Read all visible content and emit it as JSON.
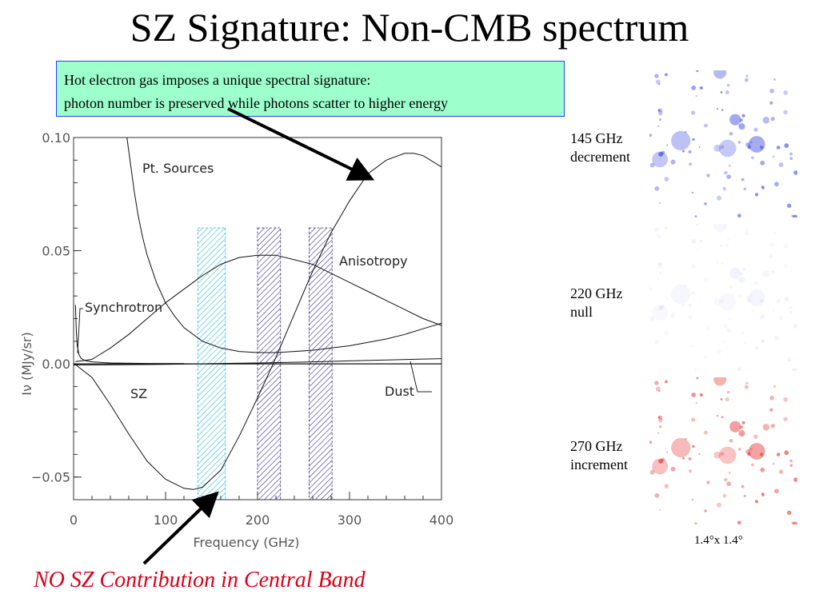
{
  "slide": {
    "title": "SZ Signature: Non-CMB spectrum",
    "callout_line1": "Hot electron gas imposes a unique spectral signature:",
    "callout_line2": "photon number is preserved while photons scatter to higher energy",
    "bottom_note": "NO SZ Contribution in Central Band",
    "scale_note": "1.4°x 1.4°",
    "bottom_note_color": "#d8001a",
    "callout_bg": "#9cffcc"
  },
  "maps": [
    {
      "label_line1": "145 GHz",
      "label_line2": "decrement",
      "color": "#1a28d8",
      "level": "strong"
    },
    {
      "label_line1": "220 GHz",
      "label_line2": "null",
      "color": "#4a58e0",
      "level": "faint"
    },
    {
      "label_line1": "270 GHz",
      "label_line2": "increment",
      "color": "#e01010",
      "level": "strong"
    }
  ],
  "chart_data": {
    "type": "line",
    "xlabel": "Frequency (GHz)",
    "ylabel": "Iν  (MJy/sr)",
    "xlim": [
      0,
      400
    ],
    "ylim": [
      -0.06,
      0.1
    ],
    "xticks": [
      0,
      100,
      200,
      300,
      400
    ],
    "yticks": [
      -0.05,
      0.0,
      0.05,
      0.1
    ],
    "xtick_labels": [
      "0",
      "100",
      "200",
      "300",
      "400"
    ],
    "ytick_labels": [
      "−0.05",
      "0.00",
      "0.05",
      "0.10"
    ],
    "bands": [
      {
        "x0": 135,
        "x1": 165,
        "color": "#2ab8d8"
      },
      {
        "x0": 200,
        "x1": 225,
        "color": "#3a2a8a"
      },
      {
        "x0": 256,
        "x1": 281,
        "color": "#3a2a8a"
      }
    ],
    "series": [
      {
        "name": "SZ",
        "x": [
          1,
          20,
          40,
          60,
          80,
          100,
          120,
          130,
          140,
          160,
          180,
          200,
          217,
          240,
          260,
          280,
          300,
          320,
          340,
          360,
          370,
          380,
          400
        ],
        "y": [
          0,
          -0.006,
          -0.018,
          -0.031,
          -0.043,
          -0.051,
          -0.055,
          -0.0555,
          -0.0545,
          -0.047,
          -0.032,
          -0.015,
          0,
          0.022,
          0.041,
          0.058,
          0.072,
          0.084,
          0.09,
          0.093,
          0.093,
          0.092,
          0.087
        ]
      },
      {
        "name": "Anisotropy",
        "x": [
          2,
          20,
          40,
          60,
          80,
          100,
          120,
          140,
          160,
          180,
          200,
          220,
          240,
          260,
          280,
          300,
          320,
          340,
          360,
          380,
          400
        ],
        "y": [
          0.001,
          0.002,
          0.007,
          0.013,
          0.02,
          0.027,
          0.033,
          0.039,
          0.044,
          0.047,
          0.048,
          0.048,
          0.046,
          0.044,
          0.04,
          0.036,
          0.032,
          0.028,
          0.024,
          0.02,
          0.017
        ]
      },
      {
        "name": "Pt. Sources",
        "x": [
          58,
          62,
          66,
          70,
          75,
          80,
          90,
          100,
          110,
          120,
          140,
          160,
          180,
          200,
          220,
          240,
          260,
          280,
          300,
          320,
          340,
          360,
          380,
          400
        ],
        "y": [
          0.1,
          0.088,
          0.076,
          0.066,
          0.056,
          0.048,
          0.036,
          0.027,
          0.021,
          0.016,
          0.01,
          0.007,
          0.0055,
          0.005,
          0.005,
          0.0055,
          0.006,
          0.007,
          0.008,
          0.0095,
          0.011,
          0.013,
          0.0155,
          0.018
        ]
      },
      {
        "name": "Synchrotron",
        "x": [
          2,
          3,
          4,
          6,
          8,
          12,
          20,
          40,
          80,
          120
        ],
        "y": [
          0.026,
          0.014,
          0.008,
          0.004,
          0.0025,
          0.0015,
          0.0009,
          0.0004,
          0.0002,
          0.0001
        ]
      },
      {
        "name": "Dust",
        "x": [
          0,
          50,
          100,
          150,
          200,
          250,
          300,
          350,
          400
        ],
        "y": [
          -0.0005,
          -0.0004,
          -0.0002,
          0.0001,
          0.0004,
          0.0008,
          0.0013,
          0.0018,
          0.0023
        ]
      }
    ],
    "labels": {
      "pt_sources": "Pt. Sources",
      "anisotropy": "Anisotropy",
      "synchrotron": "Synchrotron",
      "sz": "SZ",
      "dust": "Dust"
    }
  }
}
